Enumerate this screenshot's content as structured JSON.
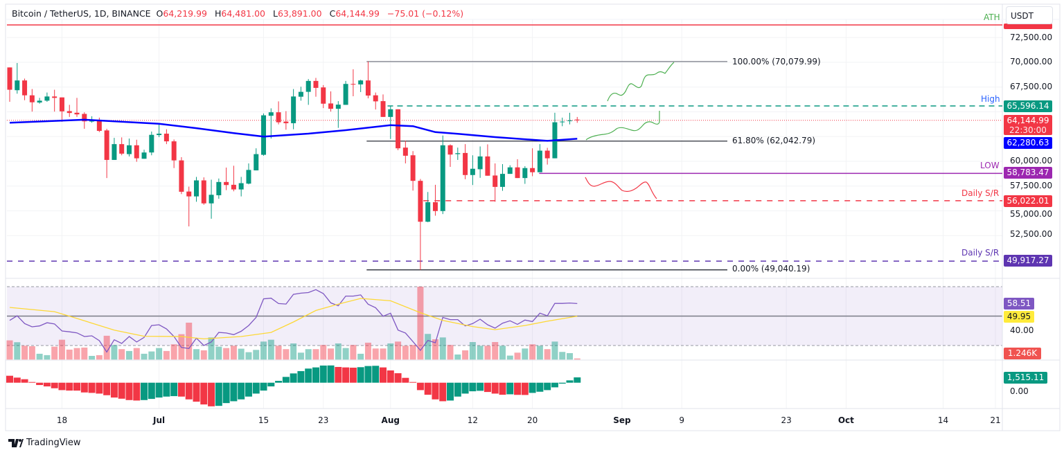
{
  "header": {
    "symbol": "Bitcoin / TetherUS, 1D, BINANCE",
    "o_label": "O",
    "o": "64,219.99",
    "h_label": "H",
    "h": "64,481.00",
    "l_label": "L",
    "l": "63,891.00",
    "c_label": "C",
    "c": "64,144.99",
    "change": "−75.01 (−0.12%)"
  },
  "currency": "USDT",
  "price_axis": [
    "72,500.00",
    "70,000.00",
    "67,500.00",
    "60,000.00",
    "57,500.00",
    "55,000.00",
    "52,500.00"
  ],
  "rsi_axis": [
    "40.00"
  ],
  "osc_axis": [
    "0.00"
  ],
  "tags": {
    "high": "65,596.14",
    "last": "64,144.99",
    "countdown": "22:30:00",
    "ma": "62,280.63",
    "low": "58,783.47",
    "sr1": "56,022.01",
    "sr2": "49,917.27",
    "rsi": "58.51",
    "rsi_ma": "49.95",
    "volume": "1.246K",
    "osc": "1,515.11"
  },
  "annotations": {
    "ath": "ATH",
    "high": "High",
    "low": "LOW",
    "sr1": "Daily S/R",
    "sr2": "Daily S/R",
    "fib100": "100.00% (70,079.99)",
    "fib618": "61.80% (62,042.79)",
    "fib0": "0.00% (49,040.19)"
  },
  "x_ticks": [
    {
      "label": "18",
      "date": "Jun 18",
      "bold": false
    },
    {
      "label": "Jul",
      "date": "Jul 1",
      "bold": true
    },
    {
      "label": "15",
      "date": "Jul 15",
      "bold": false
    },
    {
      "label": "23",
      "date": "Jul 23",
      "bold": false
    },
    {
      "label": "Aug",
      "date": "Aug 1",
      "bold": true
    },
    {
      "label": "12",
      "date": "Aug 12",
      "bold": false
    },
    {
      "label": "20",
      "date": "Aug 20",
      "bold": false
    },
    {
      "label": "Sep",
      "date": "Sep 1",
      "bold": true
    },
    {
      "label": "9",
      "date": "Sep 9",
      "bold": false
    },
    {
      "label": "23",
      "date": "Sep 23",
      "bold": false
    },
    {
      "label": "Oct",
      "date": "Oct 1",
      "bold": true
    },
    {
      "label": "14",
      "date": "Oct 14",
      "bold": false
    },
    {
      "label": "21",
      "date": "Oct 21",
      "bold": false
    }
  ],
  "logo": "TradingView",
  "colors": {
    "up": "#089981",
    "down": "#f23645",
    "ma": "#0000ff",
    "rsi": "#7e57c2",
    "rsi_ma": "#fdd835",
    "ath": "#f23645",
    "high": "#089981",
    "low": "#9c27b0",
    "sr1": "#f23645",
    "sr2": "#5e35b1",
    "ath_label": "#4caf50",
    "high_label": "#2962ff"
  },
  "chart_data": {
    "type": "candlestick",
    "y_range": [
      48000,
      74500
    ],
    "levels": {
      "ath": 73780,
      "high": 65596.14,
      "low": 58783.47,
      "sr1": 56022.01,
      "sr2": 49917.27,
      "fib100": 70079.99,
      "fib618": 62042.79,
      "fib0": 49040.19,
      "last": 64144.99
    },
    "columns": [
      "date",
      "open",
      "high",
      "low",
      "close",
      "volume_k",
      "rsi",
      "oscillator"
    ],
    "rows": [
      [
        "Jun 11",
        69484,
        69484,
        66010,
        67231,
        20.8,
        47.1,
        1977
      ],
      [
        "Jun 12",
        67184,
        69930,
        66832,
        68169,
        18.8,
        50.2,
        1450
      ],
      [
        "Jun 13",
        68169,
        68357,
        66174,
        66667,
        15,
        44.9,
        990
      ],
      [
        "Jun 14",
        66667,
        67301,
        65024,
        65963,
        14.5,
        42.7,
        200
      ],
      [
        "Jun 15",
        65940,
        66409,
        65822,
        66127,
        6.3,
        43.3,
        -660
      ],
      [
        "Jun 16",
        66127,
        66949,
        66010,
        66550,
        4.8,
        45.5,
        -1054
      ],
      [
        "Jun 17",
        66550,
        67231,
        65024,
        66409,
        14,
        44.7,
        -1580
      ],
      [
        "Jun 18",
        66456,
        66456,
        63992,
        65048,
        21.5,
        39.9,
        -2110
      ],
      [
        "Jun 19",
        65071,
        65705,
        64485,
        64884,
        10.8,
        39.3,
        -2240
      ],
      [
        "Jun 20",
        64907,
        66409,
        64485,
        64743,
        12.5,
        38.6,
        -2250
      ],
      [
        "Jun 21",
        64790,
        64954,
        63288,
        64039,
        13,
        36.1,
        -2770
      ],
      [
        "Jun 22",
        64015,
        64555,
        63898,
        64133,
        4,
        36.6,
        -2900
      ],
      [
        "Jun 23",
        64180,
        64414,
        62959,
        63076,
        4.8,
        33.3,
        -3100
      ],
      [
        "Jun 24",
        63123,
        63288,
        58312,
        60143,
        25.8,
        25.6,
        -3560
      ],
      [
        "Jun 25",
        60143,
        62372,
        60143,
        61739,
        15.8,
        33.9,
        -4220
      ],
      [
        "Jun 26",
        61739,
        62419,
        60612,
        60776,
        11.3,
        31.4,
        -4550
      ],
      [
        "Jun 27",
        60729,
        62302,
        60495,
        61621,
        9.3,
        36.1,
        -4940
      ],
      [
        "Jun 28",
        61621,
        62184,
        59955,
        60307,
        12.5,
        32.4,
        -5075
      ],
      [
        "Jun 29",
        60260,
        61175,
        60260,
        60894,
        6.3,
        35.5,
        -4940
      ],
      [
        "Jun 30",
        60894,
        63006,
        60612,
        62677,
        8.8,
        43.6,
        -4610
      ],
      [
        "Jul 1",
        62653,
        63710,
        62443,
        62794,
        12.5,
        44.1,
        -4220
      ],
      [
        "Jul 2",
        62794,
        63241,
        61739,
        62020,
        9.3,
        41.3,
        -3950
      ],
      [
        "Jul 3",
        62020,
        62208,
        59321,
        60096,
        16.5,
        36.1,
        -3820
      ],
      [
        "Jul 4",
        60096,
        60424,
        56692,
        56927,
        27.5,
        28.7,
        -3950
      ],
      [
        "Jul 5",
        56950,
        57444,
        53430,
        56458,
        40,
        28,
        -4745
      ],
      [
        "Jul 6",
        56458,
        58429,
        55918,
        58077,
        11.3,
        35,
        -5400
      ],
      [
        "Jul 7",
        58077,
        58382,
        55613,
        55754,
        10,
        30,
        -6190
      ],
      [
        "Jul 8",
        55754,
        58148,
        54204,
        56622,
        24,
        32.4,
        -6720
      ],
      [
        "Jul 9",
        56575,
        58265,
        56223,
        57913,
        14,
        38.9,
        -6590
      ],
      [
        "Jul 10",
        57913,
        59368,
        57092,
        57608,
        12.5,
        38.5,
        -5800
      ],
      [
        "Jul 11",
        57631,
        59556,
        56974,
        57162,
        15,
        37.4,
        -5270
      ],
      [
        "Jul 12",
        57162,
        58429,
        56458,
        57796,
        11.8,
        39.7,
        -4745
      ],
      [
        "Jul 13",
        57749,
        59791,
        57678,
        59133,
        8,
        43.6,
        -3950
      ],
      [
        "Jul 14",
        59086,
        61316,
        59086,
        60729,
        10.5,
        49.1,
        -3100
      ],
      [
        "Jul 15",
        60659,
        64837,
        60565,
        64649,
        19.5,
        61.7,
        -2240
      ],
      [
        "Jul 16",
        64602,
        65353,
        62302,
        64954,
        21.5,
        62.2,
        -1054
      ],
      [
        "Jul 17",
        64954,
        66057,
        63733,
        63945,
        15,
        58.5,
        527
      ],
      [
        "Jul 18",
        64015,
        65071,
        63194,
        63851,
        11.3,
        58.2,
        1650
      ],
      [
        "Jul 19",
        63851,
        67301,
        63241,
        66550,
        17.5,
        64.8,
        2640
      ],
      [
        "Jul 20",
        66526,
        67536,
        66127,
        67019,
        7.5,
        65.6,
        3300
      ],
      [
        "Jul 21",
        67019,
        68310,
        65705,
        68122,
        11.3,
        66,
        4020
      ],
      [
        "Jul 22",
        68122,
        68427,
        66526,
        67418,
        11.3,
        68,
        4350
      ],
      [
        "Jul 23",
        67465,
        67700,
        65376,
        65822,
        15.8,
        65.3,
        4880
      ],
      [
        "Jul 24",
        65846,
        67066,
        65024,
        65306,
        12,
        59,
        4910
      ],
      [
        "Jul 25",
        65306,
        66080,
        63381,
        65728,
        17.5,
        57,
        4480
      ],
      [
        "Jul 26",
        65705,
        68122,
        65705,
        67817,
        12.5,
        63.6,
        4350
      ],
      [
        "Jul 27",
        67817,
        69296,
        66573,
        67747,
        15.8,
        63.6,
        4280
      ],
      [
        "Jul 28",
        67770,
        68240,
        66996,
        68169,
        6.3,
        64.4,
        4415
      ],
      [
        "Jul 29",
        68169,
        70080,
        66362,
        66644,
        18.3,
        58.1,
        4745
      ],
      [
        "Jul 30",
        66667,
        66949,
        65236,
        66057,
        12,
        55.7,
        4810
      ],
      [
        "Jul 31",
        66080,
        66761,
        64485,
        64485,
        12,
        49.9,
        4350
      ],
      [
        "Aug 1",
        64485,
        65588,
        62255,
        65259,
        17.5,
        52,
        3490
      ],
      [
        "Aug 2",
        65259,
        65259,
        61128,
        61316,
        19.5,
        40.5,
        2700
      ],
      [
        "Aug 3",
        61386,
        62090,
        59791,
        60565,
        15,
        38.5,
        1380
      ],
      [
        "Aug 4",
        60612,
        61034,
        57045,
        58030,
        15.8,
        32.7,
        200
      ],
      [
        "Aug 5",
        58030,
        58218,
        49040,
        53900,
        79,
        26.7,
        -2110
      ],
      [
        "Aug 6",
        53900,
        56904,
        53853,
        55871,
        27.8,
        33.5,
        -3430
      ],
      [
        "Aug 7",
        55871,
        57631,
        54510,
        54979,
        22,
        31.9,
        -4745
      ],
      [
        "Aug 8",
        54979,
        62607,
        54674,
        61621,
        24,
        49.1,
        -5270
      ],
      [
        "Aug 9",
        61621,
        61715,
        59439,
        60683,
        15.8,
        47.6,
        -5075
      ],
      [
        "Aug 10",
        60729,
        61386,
        60143,
        60823,
        5.5,
        47.6,
        -3950
      ],
      [
        "Aug 11",
        60846,
        61739,
        58194,
        58617,
        10,
        43.3,
        -3100
      ],
      [
        "Aug 12",
        58617,
        60612,
        57608,
        59250,
        19,
        44.9,
        -2440
      ],
      [
        "Aug 13",
        59204,
        61504,
        58335,
        60495,
        15,
        47.9,
        -2306
      ],
      [
        "Aug 14",
        60495,
        61715,
        58547,
        58547,
        15,
        44.1,
        -2640
      ],
      [
        "Aug 15",
        58570,
        59791,
        55918,
        57420,
        19,
        41.8,
        -3100
      ],
      [
        "Aug 16",
        57420,
        59720,
        57021,
        58734,
        15,
        45.2,
        -3430
      ],
      [
        "Aug 17",
        58734,
        59603,
        58734,
        59391,
        4.3,
        46.8,
        -3295
      ],
      [
        "Aug 18",
        59391,
        60213,
        58312,
        58312,
        7.5,
        44.4,
        -3460
      ],
      [
        "Aug 19",
        58312,
        59509,
        57725,
        59321,
        12,
        47.3,
        -3490
      ],
      [
        "Aug 20",
        59321,
        61316,
        58500,
        58899,
        16.5,
        46.3,
        -2900
      ],
      [
        "Aug 21",
        58899,
        61739,
        58899,
        61081,
        15,
        52,
        -2570
      ],
      [
        "Aug 22",
        61081,
        61363,
        59673,
        60307,
        11.3,
        50.2,
        -2110
      ],
      [
        "Aug 23",
        60307,
        64907,
        60307,
        63945,
        19.5,
        58.6,
        -1320
      ],
      [
        "Aug 24",
        63945,
        64414,
        63546,
        64015,
        8.3,
        58.6,
        -264
      ],
      [
        "Aug 25",
        64062,
        64907,
        63733,
        64133,
        7,
        58.9,
        660
      ],
      [
        "Aug 26",
        64219.99,
        64481,
        63891,
        64144.99,
        1.246,
        58.51,
        1515.11
      ]
    ],
    "ma": [
      [
        "Jun 11",
        63900
      ],
      [
        "Jun 21",
        64200
      ],
      [
        "Jul 1",
        63800
      ],
      [
        "Jul 6",
        63350
      ],
      [
        "Jul 11",
        62850
      ],
      [
        "Jul 15",
        62500
      ],
      [
        "Jul 21",
        62800
      ],
      [
        "Jul 26",
        63150
      ],
      [
        "Aug 1",
        63650
      ],
      [
        "Aug 4",
        63550
      ],
      [
        "Aug 7",
        62950
      ],
      [
        "Aug 10",
        62780
      ],
      [
        "Aug 15",
        62450
      ],
      [
        "Aug 22",
        62070
      ],
      [
        "Aug 26",
        62280.63
      ]
    ],
    "rsi_ma": [
      [
        "Jun 11",
        55.9
      ],
      [
        "Jun 17",
        53
      ],
      [
        "Jun 20",
        48.4
      ],
      [
        "Jun 25",
        40.5
      ],
      [
        "Jun 29",
        36.3
      ],
      [
        "Jul 4",
        36.1
      ],
      [
        "Jul 7",
        34.5
      ],
      [
        "Jul 12",
        36.1
      ],
      [
        "Jul 16",
        38.9
      ],
      [
        "Jul 19",
        46
      ],
      [
        "Jul 22",
        53.8
      ],
      [
        "Jul 25",
        58.1
      ],
      [
        "Jul 28",
        62
      ],
      [
        "Aug 1",
        60.4
      ],
      [
        "Aug 5",
        52.3
      ],
      [
        "Aug 8",
        47.1
      ],
      [
        "Aug 12",
        42.9
      ],
      [
        "Aug 15",
        40.8
      ],
      [
        "Aug 19",
        43.6
      ],
      [
        "Aug 22",
        46.5
      ],
      [
        "Aug 26",
        49.95
      ]
    ],
    "rsi_levels": [
      70,
      50,
      30
    ]
  }
}
